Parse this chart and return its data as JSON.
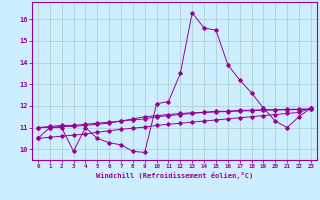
{
  "xlabel": "Windchill (Refroidissement éolien,°C)",
  "ylabel": "",
  "background_color": "#cceeff",
  "grid_color": "#aacccc",
  "line_color": "#990099",
  "xlim": [
    -0.5,
    23.5
  ],
  "ylim": [
    9.5,
    16.8
  ],
  "yticks": [
    10,
    11,
    12,
    13,
    14,
    15,
    16
  ],
  "xticks": [
    0,
    1,
    2,
    3,
    4,
    5,
    6,
    7,
    8,
    9,
    10,
    11,
    12,
    13,
    14,
    15,
    16,
    17,
    18,
    19,
    20,
    21,
    22,
    23
  ],
  "line1_x": [
    0,
    1,
    2,
    3,
    4,
    5,
    6,
    7,
    8,
    9,
    10,
    11,
    12,
    13,
    14,
    15,
    16,
    17,
    18,
    19,
    20,
    21,
    22,
    23
  ],
  "line1_y": [
    10.5,
    11.0,
    11.0,
    9.9,
    11.0,
    10.5,
    10.3,
    10.2,
    9.9,
    9.85,
    12.1,
    12.2,
    13.5,
    16.3,
    15.6,
    15.5,
    13.9,
    13.2,
    12.6,
    11.9,
    11.3,
    11.0,
    11.5,
    11.9
  ],
  "line2_x": [
    0,
    1,
    2,
    3,
    4,
    5,
    6,
    7,
    8,
    9,
    10,
    11,
    12,
    13,
    14,
    15,
    16,
    17,
    18,
    19,
    20,
    21,
    22,
    23
  ],
  "line2_y": [
    11.0,
    11.05,
    11.1,
    11.1,
    11.15,
    11.2,
    11.25,
    11.3,
    11.35,
    11.4,
    11.5,
    11.55,
    11.6,
    11.65,
    11.7,
    11.75,
    11.75,
    11.8,
    11.8,
    11.82,
    11.83,
    11.84,
    11.85,
    11.86
  ],
  "line3_x": [
    0,
    1,
    2,
    3,
    4,
    5,
    6,
    7,
    8,
    9,
    10,
    11,
    12,
    13,
    14,
    15,
    16,
    17,
    18,
    19,
    20,
    21,
    22,
    23
  ],
  "line3_y": [
    11.0,
    11.0,
    11.05,
    11.05,
    11.1,
    11.15,
    11.2,
    11.3,
    11.4,
    11.5,
    11.55,
    11.6,
    11.65,
    11.68,
    11.7,
    11.72,
    11.74,
    11.76,
    11.78,
    11.8,
    11.81,
    11.82,
    11.83,
    11.84
  ],
  "line4_x": [
    0,
    1,
    2,
    3,
    4,
    5,
    6,
    7,
    8,
    9,
    10,
    11,
    12,
    13,
    14,
    15,
    16,
    17,
    18,
    19,
    20,
    21,
    22,
    23
  ],
  "line4_y": [
    10.5,
    10.55,
    10.6,
    10.65,
    10.7,
    10.78,
    10.85,
    10.92,
    10.97,
    11.02,
    11.1,
    11.15,
    11.2,
    11.25,
    11.3,
    11.35,
    11.4,
    11.45,
    11.5,
    11.55,
    11.6,
    11.65,
    11.7,
    11.9
  ]
}
